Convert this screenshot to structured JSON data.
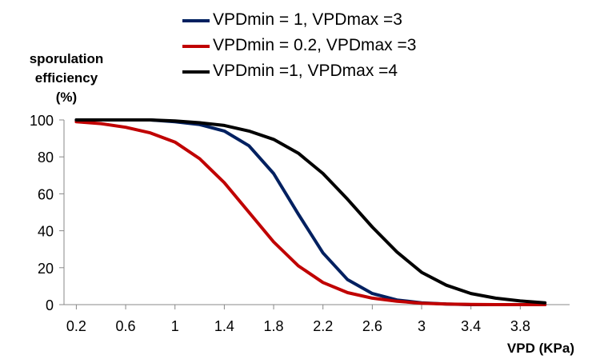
{
  "chart_data": {
    "type": "line",
    "title": "",
    "ylabel_lines": [
      "sporulation",
      "efficiency",
      "(%)"
    ],
    "xlabel": "VPD (KPa)",
    "xlim": [
      0.1,
      4.2
    ],
    "ylim": [
      0,
      100
    ],
    "x_ticks": [
      0.2,
      0.6,
      1,
      1.4,
      1.8,
      2.2,
      2.6,
      3,
      3.4,
      3.8
    ],
    "y_ticks": [
      0,
      20,
      40,
      60,
      80,
      100
    ],
    "grid": false,
    "legend_position": "top",
    "x": [
      0.2,
      0.4,
      0.6,
      0.8,
      1.0,
      1.2,
      1.4,
      1.6,
      1.8,
      2.0,
      2.2,
      2.4,
      2.6,
      2.8,
      3.0,
      3.2,
      3.4,
      3.6,
      3.8,
      4.0
    ],
    "series": [
      {
        "name": "VPDmin = 1, VPDmax =3",
        "color": "#002060",
        "values": [
          100,
          100,
          100,
          100,
          99,
          97.5,
          94,
          86,
          71,
          49,
          28,
          13.5,
          6,
          2.5,
          1,
          0.3,
          0,
          0,
          0,
          0
        ]
      },
      {
        "name": "VPDmin = 0.2, VPDmax =3",
        "color": "#C00000",
        "values": [
          99,
          98,
          96,
          93,
          88,
          79,
          66,
          50,
          34,
          21,
          12,
          6.5,
          3.5,
          1.8,
          0.8,
          0.3,
          0.1,
          0,
          0,
          0
        ]
      },
      {
        "name": "VPDmin =1, VPDmax =4",
        "color": "#000000",
        "values": [
          100,
          100,
          100,
          100,
          99.5,
          98.5,
          97,
          94,
          89.5,
          82,
          71,
          57,
          42,
          28.5,
          17.5,
          10.5,
          6,
          3.5,
          2,
          1
        ]
      }
    ]
  }
}
